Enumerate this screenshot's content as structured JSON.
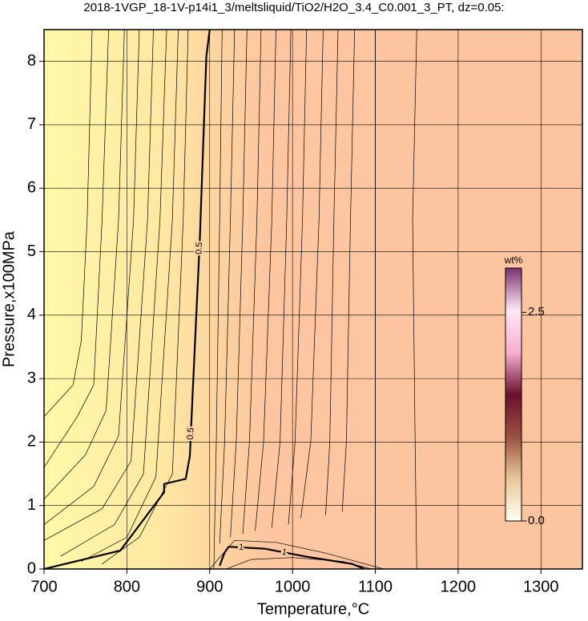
{
  "chart_data": {
    "type": "contour",
    "title": "2018-1VGP_18-1V-p14i1_3/meltsliquid/TiO2/H2O_3.4_C0.001_3_PT, dz=0.05:",
    "x_label": "Temperature,°C",
    "y_label": "Pressure,x100MPa",
    "xlim": [
      700,
      1350
    ],
    "ylim": [
      0,
      8.5
    ],
    "xticks": [
      700,
      800,
      900,
      1000,
      1100,
      1200,
      1300
    ],
    "yticks": [
      0,
      1,
      2,
      3,
      4,
      5,
      6,
      7,
      8
    ],
    "grid": true,
    "labeled_contours": [
      {
        "level": 0.5,
        "x": [
          700,
          792,
          845,
          845,
          871,
          876,
          879,
          888,
          896,
          900
        ],
        "y": [
          0,
          0.29,
          1.21,
          1.34,
          1.42,
          1.78,
          2.66,
          5.18,
          8.08,
          8.5
        ]
      },
      {
        "level": 1,
        "x": [
          912,
          918,
          923,
          966,
          1014,
          1072,
          1087
        ],
        "y": [
          0.05,
          0.26,
          0.35,
          0.32,
          0.2,
          0.08,
          0
        ]
      }
    ],
    "contours": [
      {
        "x": [
          700,
          735,
          745,
          752,
          758
        ],
        "y": [
          2.4,
          2.9,
          3.6,
          5.5,
          8.5
        ]
      },
      {
        "x": [
          700,
          740,
          760,
          770,
          778
        ],
        "y": [
          1.6,
          2.4,
          2.9,
          5.5,
          8.5
        ]
      },
      {
        "x": [
          700,
          750,
          775,
          790,
          797
        ],
        "y": [
          1.1,
          1.8,
          2.5,
          5.5,
          8.5
        ]
      },
      {
        "x": [
          700,
          760,
          790,
          808,
          815
        ],
        "y": [
          0.7,
          1.3,
          2.1,
          5.5,
          8.5
        ]
      },
      {
        "x": [
          700,
          770,
          805,
          825,
          832
        ],
        "y": [
          0.45,
          0.95,
          1.7,
          5.5,
          8.5
        ]
      },
      {
        "x": [
          720,
          785,
          820,
          840,
          848
        ],
        "y": [
          0.2,
          0.7,
          1.5,
          5.5,
          8.5
        ]
      },
      {
        "x": [
          745,
          800,
          835,
          855,
          862
        ],
        "y": [
          0.12,
          0.5,
          1.45,
          5.5,
          8.5
        ]
      },
      {
        "x": [
          770,
          815,
          855,
          868,
          874
        ],
        "y": [
          0.08,
          0.5,
          1.5,
          5.5,
          8.5
        ]
      },
      {
        "x": [
          905,
          908,
          912,
          915
        ],
        "y": [
          0,
          2,
          5.5,
          8.5
        ]
      },
      {
        "x": [
          912,
          918,
          925,
          930
        ],
        "y": [
          0.4,
          2,
          5.5,
          8.5
        ]
      },
      {
        "x": [
          925,
          932,
          940,
          945
        ],
        "y": [
          0.5,
          2,
          5.5,
          8.5
        ]
      },
      {
        "x": [
          940,
          948,
          957,
          962
        ],
        "y": [
          0.55,
          2,
          5.5,
          8.5
        ]
      },
      {
        "x": [
          955,
          965,
          975,
          980
        ],
        "y": [
          0.6,
          2,
          5.5,
          8.5
        ]
      },
      {
        "x": [
          975,
          985,
          993,
          998
        ],
        "y": [
          0.65,
          2,
          5.5,
          8.5
        ]
      },
      {
        "x": [
          995,
          1003,
          1012,
          1017
        ],
        "y": [
          0.7,
          2,
          5.5,
          8.5
        ]
      },
      {
        "x": [
          1010,
          1022,
          1032,
          1037
        ],
        "y": [
          0.8,
          2,
          5.5,
          8.5
        ]
      },
      {
        "x": [
          1040,
          1045,
          1050,
          1055
        ],
        "y": [
          0.85,
          2,
          5.5,
          8.5
        ]
      },
      {
        "x": [
          1060,
          1065,
          1070,
          1075
        ],
        "y": [
          0.9,
          2,
          5.5,
          8.5
        ]
      },
      {
        "x": [
          1100,
          1100,
          1100,
          1100
        ],
        "y": [
          0,
          2,
          5.5,
          8.5
        ]
      },
      {
        "x": [
          1150,
          1148,
          1145,
          1150
        ],
        "y": [
          0,
          2,
          5.5,
          8.5
        ]
      },
      {
        "x": [
          900,
          930,
          980,
          1040,
          1110
        ],
        "y": [
          0,
          0.45,
          0.42,
          0.25,
          0
        ]
      },
      {
        "x": [
          920,
          950,
          1000,
          1060,
          1095
        ],
        "y": [
          0,
          0.15,
          0.18,
          0.12,
          0
        ]
      }
    ],
    "colorbar": {
      "label": "wt%",
      "clim": [
        0,
        3.03
      ],
      "ticks": [
        {
          "value": 0,
          "label": "0.0"
        },
        2.5
      ],
      "colors": [
        "#fffff0",
        "#e8c89a",
        "#9a5040",
        "#6a1030",
        "#f5b0d0",
        "#ffe8f5",
        "#7a3070"
      ]
    }
  }
}
